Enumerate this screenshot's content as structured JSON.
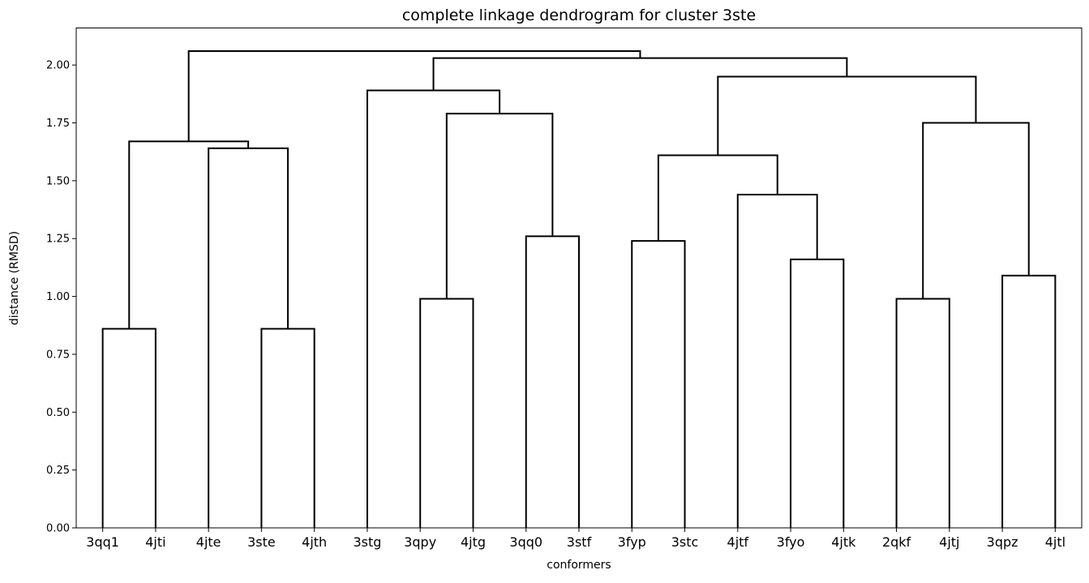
{
  "chart_data": {
    "type": "dendrogram",
    "title": "complete linkage dendrogram for cluster 3ste",
    "xlabel": "conformers",
    "ylabel": "distance (RMSD)",
    "ylim": [
      0,
      2.16
    ],
    "yticks": [
      "0.00",
      "0.25",
      "0.50",
      "0.75",
      "1.00",
      "1.25",
      "1.50",
      "1.75",
      "2.00"
    ],
    "ytick_values": [
      0,
      0.25,
      0.5,
      0.75,
      1.0,
      1.25,
      1.5,
      1.75,
      2.0
    ],
    "leaves": [
      "3qq1",
      "4jti",
      "4jte",
      "3ste",
      "4jth",
      "3stg",
      "3qpy",
      "4jtg",
      "3qq0",
      "3stf",
      "3fyp",
      "3stc",
      "4jtf",
      "3fyo",
      "4jtk",
      "2qkf",
      "4jtj",
      "3qpz",
      "4jtl"
    ],
    "merges": [
      {
        "a": "L0",
        "b": "L1",
        "height": 0.86
      },
      {
        "a": "L3",
        "b": "L4",
        "height": 0.86
      },
      {
        "a": "L2",
        "b": "M1",
        "height": 1.64
      },
      {
        "a": "M0",
        "b": "M2",
        "height": 1.67
      },
      {
        "a": "L6",
        "b": "L7",
        "height": 0.99
      },
      {
        "a": "L8",
        "b": "L9",
        "height": 1.26
      },
      {
        "a": "M4",
        "b": "M5",
        "height": 1.79
      },
      {
        "a": "L5",
        "b": "M6",
        "height": 1.89
      },
      {
        "a": "L10",
        "b": "L11",
        "height": 1.24
      },
      {
        "a": "L13",
        "b": "L14",
        "height": 1.16
      },
      {
        "a": "L12",
        "b": "M9",
        "height": 1.44
      },
      {
        "a": "M8",
        "b": "M10",
        "height": 1.61
      },
      {
        "a": "L15",
        "b": "L16",
        "height": 0.99
      },
      {
        "a": "L17",
        "b": "L18",
        "height": 1.09
      },
      {
        "a": "M12",
        "b": "M13",
        "height": 1.75
      },
      {
        "a": "M11",
        "b": "M14",
        "height": 1.95
      },
      {
        "a": "M7",
        "b": "M15",
        "height": 2.03
      },
      {
        "a": "M3",
        "b": "M16",
        "height": 2.06
      }
    ],
    "line_color": "#000000",
    "grid": false
  }
}
